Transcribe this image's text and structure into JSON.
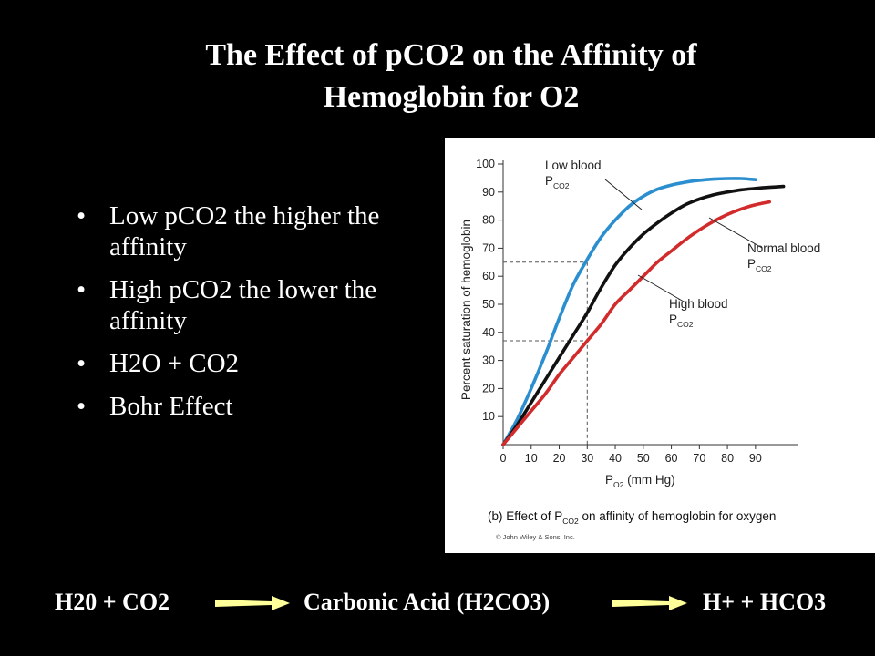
{
  "slide": {
    "title_lines": [
      "The Effect of pCO2 on the Affinity of",
      "Hemoglobin for O2"
    ],
    "bullets": [
      "Low pCO2 the higher the affinity",
      "High pCO2 the lower the affinity",
      "H2O + CO2",
      "Bohr Effect"
    ],
    "equation": {
      "reactants": "H20 + CO2",
      "intermediate": "Carbonic Acid (H2CO3)",
      "products": "H+  + HCO3",
      "arrow_color": "#FFFF99"
    }
  },
  "chart_data": {
    "type": "line",
    "ylabel": "Percent saturation of hemoglobin",
    "xlabel": "P",
    "xlabel_sub": "O2",
    "xlabel_suffix": " (mm Hg)",
    "caption_prefix": "(b) Effect of P",
    "caption_sub": "CO2",
    "caption_suffix": " on affinity of hemoglobin for oxygen",
    "copyright": "© John Wiley & Sons, Inc.",
    "xlim": [
      0,
      105
    ],
    "ylim": [
      0,
      100
    ],
    "x_ticks": [
      0,
      10,
      20,
      30,
      40,
      50,
      60,
      70,
      80,
      90
    ],
    "y_ticks": [
      10,
      20,
      30,
      40,
      50,
      60,
      70,
      80,
      90,
      100
    ],
    "reference": {
      "x": 30,
      "y_values": [
        65,
        37
      ]
    },
    "series": [
      {
        "label_lines": [
          "Low blood",
          "P"
        ],
        "label_sub": "CO2",
        "color": "#2b8fcf",
        "x": [
          0,
          5,
          10,
          15,
          20,
          25,
          30,
          35,
          40,
          45,
          50,
          55,
          60,
          65,
          70,
          75,
          80,
          85,
          90
        ],
        "y": [
          0,
          9,
          20,
          32,
          45,
          57,
          66,
          74,
          80,
          85,
          88.5,
          91,
          92.5,
          93.5,
          94.2,
          94.6,
          94.8,
          94.8,
          94.4
        ]
      },
      {
        "label_lines": [
          "Normal blood",
          "P"
        ],
        "label_sub": "CO2",
        "color": "#111111",
        "x": [
          0,
          5,
          10,
          15,
          20,
          25,
          30,
          35,
          40,
          45,
          50,
          55,
          60,
          65,
          70,
          75,
          80,
          85,
          90,
          95,
          100
        ],
        "y": [
          0,
          7,
          15,
          23,
          31,
          39,
          47,
          56,
          64,
          70,
          75,
          79,
          82.5,
          85.5,
          87.5,
          89,
          90,
          90.8,
          91.3,
          91.7,
          92
        ]
      },
      {
        "label_lines": [
          "High blood",
          "P"
        ],
        "label_sub": "CO2",
        "color": "#d22b2b",
        "x": [
          0,
          5,
          10,
          15,
          20,
          25,
          30,
          35,
          40,
          45,
          50,
          55,
          60,
          65,
          70,
          75,
          80,
          85,
          90,
          95
        ],
        "y": [
          0,
          6,
          12,
          18,
          25,
          31,
          37,
          43,
          50,
          55,
          60,
          65,
          69,
          73,
          76.5,
          79.5,
          82,
          84,
          85.5,
          86.5
        ]
      }
    ]
  }
}
